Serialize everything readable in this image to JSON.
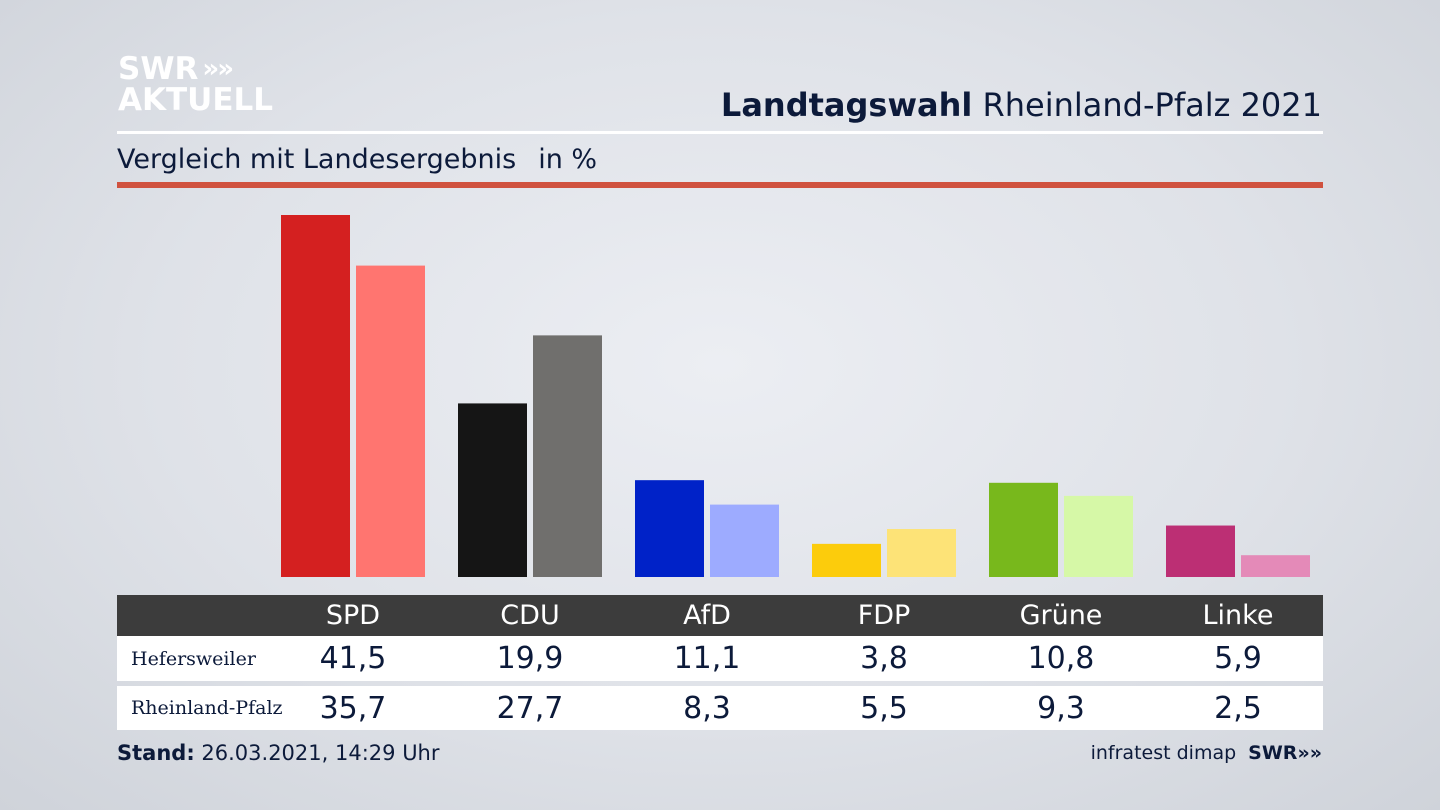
{
  "logo": {
    "line1": "SWR",
    "line2": "AKTUELL",
    "chevrons": "»"
  },
  "header": {
    "title_bold": "Landtagswahl",
    "title_rest": "Rheinland-Pfalz 2021"
  },
  "subheader": {
    "text": "Vergleich mit Landesergebnis",
    "unit": "in %"
  },
  "chart_data": {
    "type": "bar",
    "categories": [
      "SPD",
      "CDU",
      "AfD",
      "FDP",
      "Grüne",
      "Linke"
    ],
    "series": [
      {
        "name": "Hefersweiler",
        "values": [
          41.5,
          19.9,
          11.1,
          3.8,
          10.8,
          5.9
        ],
        "labels": [
          "41,5",
          "19,9",
          "11,1",
          "3,8",
          "10,8",
          "5,9"
        ]
      },
      {
        "name": "Rheinland-Pfalz",
        "values": [
          35.7,
          27.7,
          8.3,
          5.5,
          9.3,
          2.5
        ],
        "labels": [
          "35,7",
          "27,7",
          "8,3",
          "5,5",
          "9,3",
          "2,5"
        ]
      }
    ],
    "colors": {
      "primary": [
        "#d42020",
        "#151515",
        "#0022c8",
        "#fccc0c",
        "#78b81c",
        "#bc2f74"
      ],
      "secondary": [
        "#ff7570",
        "#706f6d",
        "#9dabff",
        "#fde377",
        "#d6f8a7",
        "#e48ab8"
      ]
    },
    "ylim": [
      0,
      42
    ]
  },
  "footer": {
    "stand_label": "Stand:",
    "stand_value": "26.03.2021, 14:29 Uhr",
    "source": "infratest dimap",
    "brand": "SWR"
  },
  "colors": {
    "accent_red": "#d0523f",
    "text_dark": "#0c1a3a",
    "table_header": "#3c3c3c"
  }
}
